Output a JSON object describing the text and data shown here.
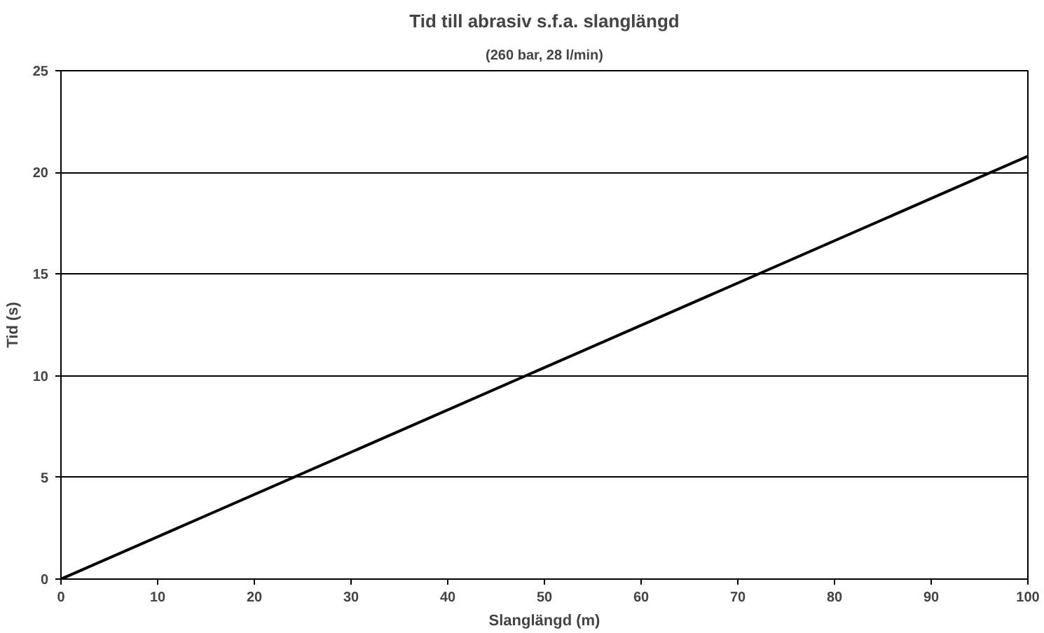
{
  "chart_data": {
    "type": "line",
    "title": "Tid till abrasiv s.f.a. slanglängd",
    "subtitle": "(260 bar, 28 l/min)",
    "xlabel": "Slanglängd (m)",
    "ylabel": "Tid (s)",
    "x": [
      0,
      100
    ],
    "series": [
      {
        "color": "#000000",
        "values": [
          0,
          20.8
        ]
      }
    ],
    "xlim": [
      0,
      100
    ],
    "ylim": [
      0,
      25
    ],
    "xticks": [
      0,
      10,
      20,
      30,
      40,
      50,
      60,
      70,
      80,
      90,
      100
    ],
    "yticks": [
      0,
      5,
      10,
      15,
      20,
      25
    ],
    "grid": "y",
    "marker": "none",
    "line_style": "solid"
  }
}
